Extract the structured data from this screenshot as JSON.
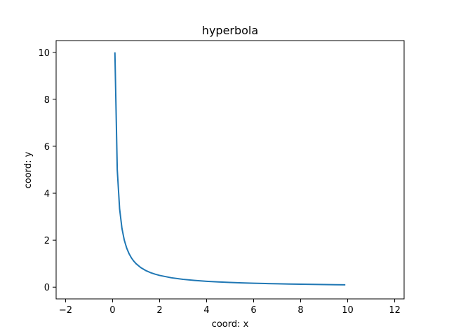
{
  "chart_data": {
    "type": "line",
    "title": "hyperbola",
    "xlabel": "coord: x",
    "ylabel": "coord: y",
    "xlim": [
      -2.4,
      12.4
    ],
    "ylim": [
      -0.5,
      10.5
    ],
    "x_ticks": [
      -2,
      0,
      2,
      4,
      6,
      8,
      10,
      12
    ],
    "y_ticks": [
      0,
      2,
      4,
      6,
      8,
      10
    ],
    "grid": false,
    "line_color": "#1f77b4",
    "series": [
      {
        "function": "y = 1/x",
        "x": [
          0.1,
          0.2,
          0.3,
          0.4,
          0.5,
          0.6,
          0.7,
          0.8,
          0.9,
          1.0,
          1.2,
          1.4,
          1.6,
          1.8,
          2.0,
          2.5,
          3.0,
          3.5,
          4.0,
          4.5,
          5.0,
          5.5,
          6.0,
          6.5,
          7.0,
          7.5,
          8.0,
          8.5,
          9.0,
          9.5,
          9.9
        ],
        "y": [
          10.0,
          5.0,
          3.333,
          2.5,
          2.0,
          1.667,
          1.429,
          1.25,
          1.111,
          1.0,
          0.833,
          0.714,
          0.625,
          0.556,
          0.5,
          0.4,
          0.333,
          0.286,
          0.25,
          0.222,
          0.2,
          0.182,
          0.167,
          0.154,
          0.143,
          0.133,
          0.125,
          0.118,
          0.111,
          0.105,
          0.101
        ]
      }
    ]
  }
}
